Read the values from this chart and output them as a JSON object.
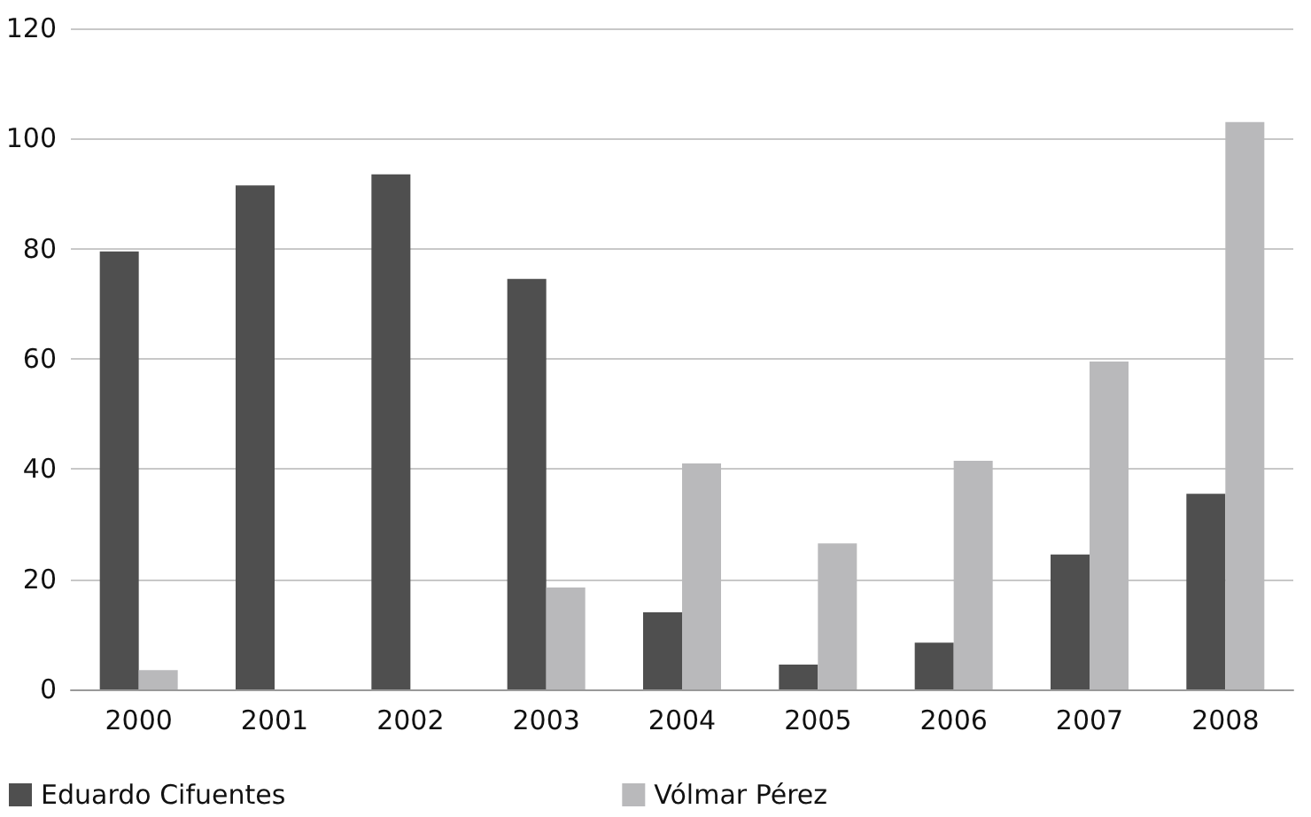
{
  "chart_data": {
    "type": "bar",
    "categories": [
      "2000",
      "2001",
      "2002",
      "2003",
      "2004",
      "2005",
      "2006",
      "2007",
      "2008"
    ],
    "series": [
      {
        "name": "Eduardo Cifuentes",
        "color": "#4f4f4f",
        "values": [
          79.5,
          91.5,
          93.5,
          74.5,
          14,
          4.5,
          8.5,
          24.5,
          35.5
        ]
      },
      {
        "name": "Vólmar Pérez",
        "color": "#b9b9bb",
        "values": [
          3.5,
          0,
          0,
          18.5,
          41,
          26.5,
          41.5,
          59.5,
          103
        ]
      }
    ],
    "ylim": [
      0,
      120
    ],
    "yticks": [
      0,
      20,
      40,
      60,
      80,
      100,
      120
    ],
    "grid": "y",
    "legend": "bottom left"
  }
}
